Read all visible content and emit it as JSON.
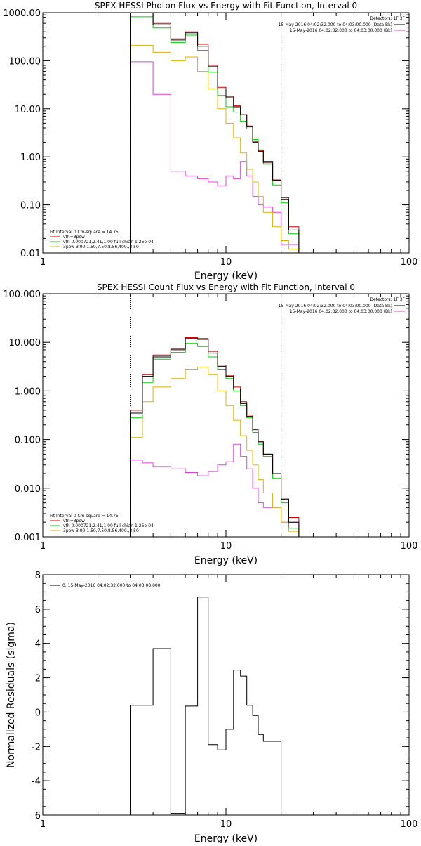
{
  "chart_data": [
    {
      "type": "line",
      "step": true,
      "title": "SPEX HESSI Photon Flux vs Energy with Fit Function, Interval 0",
      "xlabel": "Energy (keV)",
      "ylabel": "",
      "xscale": "log",
      "yscale": "log",
      "xlim": [
        1,
        100
      ],
      "ylim": [
        0.01,
        1000
      ],
      "xticks": [
        1,
        10,
        100
      ],
      "xtick_labels": [
        "1",
        "10",
        "100"
      ],
      "yticks": [
        0.01,
        0.1,
        1,
        10,
        100,
        1000
      ],
      "ytick_labels": [
        "0.01",
        "0.10",
        "1.00",
        "10.00",
        "100.00",
        "1000.00"
      ],
      "vlines": [
        {
          "x": 3.0,
          "style": "dotted",
          "color": "#000000"
        },
        {
          "x": 20.0,
          "style": "dashed",
          "color": "#000000"
        }
      ],
      "legend_top_right": {
        "header": "Detectors: 1F 3F",
        "entries": [
          {
            "label": "15-May-2016 04:02:32.000 to 04:03:00.000 (Data-Bk)",
            "color": "#000000"
          },
          {
            "label": "15-May-2016 04:02:32.000 to 04:03:00.000 (Bk)",
            "color": "#e040e0"
          }
        ]
      },
      "legend_bottom_left": {
        "header": "Fit Interval 0   Chi-square = 14.75",
        "entries": [
          {
            "label": "vth+3pow",
            "color": "#d00000"
          },
          {
            "label": "vth 0.000721,2.41,1.00   full chian 1.26e-04",
            "color": "#00d000"
          },
          {
            "label": "3pow 3.90,1.50,7.50,8.56,400.,2.50",
            "color": "#e0b000"
          }
        ]
      },
      "x_edges": [
        3.0,
        3.5,
        4.0,
        5.0,
        6.0,
        7.0,
        8.0,
        9.0,
        10.0,
        11.0,
        12.0,
        13.0,
        14.0,
        15.0,
        16.0,
        18.0,
        20.0,
        22.0,
        25.0
      ],
      "series": [
        {
          "name": "Data-Bk",
          "color": "#000000",
          "values": [
            1000,
            1000,
            560,
            270,
            380,
            200,
            75,
            26,
            17,
            11,
            7.5,
            4.2,
            2.0,
            1.3,
            0.8,
            0.33,
            0.13,
            0.03
          ]
        },
        {
          "name": "vth+3pow",
          "color": "#d00000",
          "values": [
            1100,
            1100,
            600,
            285,
            400,
            220,
            80,
            28,
            18,
            11.5,
            7.5,
            4.4,
            2.1,
            1.35,
            0.75,
            0.32,
            0.14,
            0.035
          ]
        },
        {
          "name": "vth",
          "color": "#00d000",
          "values": [
            820,
            820,
            480,
            240,
            340,
            165,
            58,
            19,
            11,
            8.5,
            5.5,
            3.8,
            2.3,
            1.4,
            0.7,
            0.26,
            0.11,
            0.025
          ]
        },
        {
          "name": "3pow",
          "color": "#e0b000",
          "values": [
            210,
            210,
            150,
            100,
            120,
            60,
            26,
            10,
            5.0,
            2.5,
            1.2,
            0.55,
            0.3,
            0.15,
            0.07,
            0.035,
            0.018,
            0.012
          ]
        },
        {
          "name": "Bk",
          "color": "#e040e0",
          "values": [
            95,
            95,
            20,
            0.5,
            0.4,
            0.35,
            0.3,
            0.25,
            0.4,
            0.35,
            0.8,
            0.4,
            0.15,
            0.1,
            0.09,
            0.07,
            0.015,
            0.015
          ]
        }
      ]
    },
    {
      "type": "line",
      "step": true,
      "title": "SPEX HESSI Count Flux vs Energy with Fit Function, Interval 0",
      "xlabel": "Energy (keV)",
      "ylabel": "",
      "xscale": "log",
      "yscale": "log",
      "xlim": [
        1,
        100
      ],
      "ylim": [
        0.001,
        100
      ],
      "xticks": [
        1,
        10,
        100
      ],
      "xtick_labels": [
        "1",
        "10",
        "100"
      ],
      "yticks": [
        0.001,
        0.01,
        0.1,
        1,
        10,
        100
      ],
      "ytick_labels": [
        "0.001",
        "0.010",
        "0.100",
        "1.000",
        "10.000",
        "100.000"
      ],
      "vlines": [
        {
          "x": 3.0,
          "style": "dotted",
          "color": "#000000"
        },
        {
          "x": 20.0,
          "style": "dashed",
          "color": "#000000"
        }
      ],
      "legend_top_right": {
        "header": "Detectors: 1F 3F",
        "entries": [
          {
            "label": "15-May-2016 04:02:32.000 to 04:03:00.000 (Data-Bk)",
            "color": "#000000"
          },
          {
            "label": "15-May-2016 04:02:32.000 to 04:03:00.000 (Bk)",
            "color": "#e040e0"
          }
        ]
      },
      "legend_bottom_left": {
        "header": "Fit Interval 0   Chi-square = 14.75",
        "entries": [
          {
            "label": "vth+3pow",
            "color": "#d00000"
          },
          {
            "label": "vth 0.000721,2.41,1.00   full chian 1.26e-04",
            "color": "#00d000"
          },
          {
            "label": "3pow 3.90,1.50,7.50,8.56,400.,2.50",
            "color": "#e0b000"
          }
        ]
      },
      "x_edges": [
        3.0,
        3.5,
        4.0,
        5.0,
        6.0,
        7.0,
        8.0,
        9.0,
        10.0,
        11.0,
        12.0,
        13.0,
        14.0,
        15.0,
        16.0,
        18.0,
        20.0,
        22.0,
        25.0
      ],
      "series": [
        {
          "name": "Data-Bk",
          "color": "#000000",
          "values": [
            0.35,
            2.0,
            5.0,
            7.0,
            12.0,
            11.5,
            6.0,
            3.2,
            2.0,
            1.1,
            0.55,
            0.3,
            0.15,
            0.09,
            0.05,
            0.02,
            0.006,
            0.002
          ]
        },
        {
          "name": "vth+3pow",
          "color": "#d00000",
          "values": [
            0.4,
            2.2,
            5.5,
            7.5,
            12.5,
            12.0,
            6.5,
            3.4,
            2.1,
            1.2,
            0.6,
            0.32,
            0.16,
            0.09,
            0.05,
            0.02,
            0.006,
            0.0025
          ]
        },
        {
          "name": "vth",
          "color": "#00d000",
          "values": [
            0.28,
            1.5,
            4.5,
            6.2,
            9.5,
            8.2,
            5.0,
            2.8,
            1.8,
            1.0,
            0.5,
            0.28,
            0.14,
            0.08,
            0.045,
            0.016,
            0.005,
            0.0015
          ]
        },
        {
          "name": "3pow",
          "color": "#e0b000",
          "values": [
            0.11,
            0.6,
            1.2,
            1.8,
            2.8,
            3.1,
            2.2,
            1.0,
            0.5,
            0.25,
            0.12,
            0.06,
            0.03,
            0.015,
            0.008,
            0.004,
            0.002,
            0.0013
          ]
        },
        {
          "name": "Bk",
          "color": "#e040e0",
          "values": [
            0.038,
            0.033,
            0.028,
            0.025,
            0.021,
            0.018,
            0.022,
            0.03,
            0.035,
            0.08,
            0.045,
            0.025,
            0.01,
            0.005,
            0.004,
            0.004,
            0.002,
            0.002
          ]
        }
      ]
    },
    {
      "type": "line",
      "step": true,
      "title": "",
      "xlabel": "Energy (keV)",
      "ylabel": "Normalized Residuals (sigma)",
      "xscale": "log",
      "yscale": "linear",
      "xlim": [
        1,
        100
      ],
      "ylim": [
        -6,
        8
      ],
      "xticks": [
        1,
        10,
        100
      ],
      "xtick_labels": [
        "1",
        "10",
        "100"
      ],
      "yticks": [
        -6,
        -4,
        -2,
        0,
        2,
        4,
        6,
        8
      ],
      "ytick_labels": [
        "-6",
        "-4",
        "-2",
        "0",
        "2",
        "4",
        "6",
        "8"
      ],
      "legend_top_left": {
        "entries": [
          {
            "label": "0. 15-May-2016 04:02:32.000 to 04:03:00.000",
            "color": "#000000"
          }
        ]
      },
      "x_edges": [
        3.0,
        4.0,
        5.0,
        6.0,
        7.0,
        8.0,
        9.0,
        10.0,
        11.0,
        12.0,
        13.0,
        14.0,
        15.0,
        16.0,
        18.0,
        20.0
      ],
      "series": [
        {
          "name": "0. 15-May-2016 04:02:32.000 to 04:03:00.000",
          "color": "#000000",
          "values": [
            0.4,
            3.7,
            -5.9,
            0.35,
            6.7,
            -1.9,
            -2.2,
            -1.0,
            2.45,
            2.1,
            0.4,
            -0.2,
            -1.3,
            -1.7,
            -1.7
          ]
        }
      ]
    }
  ]
}
